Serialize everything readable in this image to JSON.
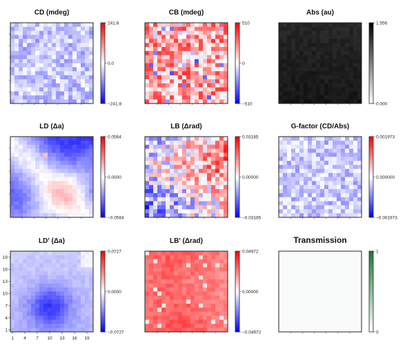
{
  "chart_data": [
    {
      "type": "heatmap",
      "title": "CD (mdeg)",
      "colormap": "bwr",
      "colorbar": {
        "ticks": [
          "241.8",
          "0.0",
          "−241.8"
        ],
        "range": [
          -241.8,
          241.8
        ]
      },
      "pattern": "noise-blue",
      "colors": {
        "low": "#0000ff",
        "mid": "#ffffff",
        "high": "#ff0000"
      }
    },
    {
      "type": "heatmap",
      "title": "CB (mdeg)",
      "colormap": "bwr",
      "colorbar": {
        "ticks": [
          "510",
          "0",
          "−510"
        ],
        "range": [
          -510,
          510
        ]
      },
      "pattern": "noise-red",
      "colors": {
        "low": "#0000ff",
        "mid": "#ffffff",
        "high": "#ff0000"
      }
    },
    {
      "type": "heatmap",
      "title": "Abs (au)",
      "colormap": "gray_r",
      "colorbar": {
        "ticks": [
          "1.556",
          "0.000"
        ],
        "range": [
          0,
          1.556
        ]
      },
      "pattern": "dark",
      "colors": {
        "low": "#ffffff",
        "high": "#000000"
      }
    },
    {
      "type": "heatmap",
      "title": "LD (Δa)",
      "colormap": "bwr",
      "colorbar": {
        "ticks": [
          "0.0564",
          "0.0000",
          "−0.0564"
        ],
        "range": [
          -0.0564,
          0.0564
        ]
      },
      "pattern": "diagonal",
      "colors": {
        "low": "#0000ff",
        "mid": "#ffffff",
        "high": "#ff0000"
      }
    },
    {
      "type": "heatmap",
      "title": "LB (Δrad)",
      "colormap": "bwr",
      "colorbar": {
        "ticks": [
          "0.03185",
          "0.00000",
          "−0.03185"
        ],
        "range": [
          -0.03185,
          0.03185
        ]
      },
      "pattern": "noise-mixed",
      "colors": {
        "low": "#0000ff",
        "mid": "#ffffff",
        "high": "#ff0000"
      }
    },
    {
      "type": "heatmap",
      "title": "G-factor (CD/Abs)",
      "colormap": "bwr",
      "colorbar": {
        "ticks": [
          "0.001973",
          "0.000000",
          "−0.001973"
        ],
        "range": [
          -0.001973,
          0.001973
        ]
      },
      "pattern": "noise-blue",
      "colors": {
        "low": "#0000ff",
        "mid": "#ffffff",
        "high": "#ff0000"
      }
    },
    {
      "type": "heatmap",
      "title": "LD' (Δa)",
      "colormap": "bwr",
      "colorbar": {
        "ticks": [
          "0.0727",
          "0.0000",
          "−0.0727"
        ],
        "range": [
          -0.0727,
          0.0727
        ]
      },
      "pattern": "blob",
      "colors": {
        "low": "#0000ff",
        "mid": "#ffffff",
        "high": "#ff0000"
      },
      "xticks": [
        "1",
        "4",
        "7",
        "10",
        "13",
        "16",
        "19"
      ],
      "yticks": [
        "19",
        "16",
        "13",
        "10",
        "7",
        "4",
        "1"
      ]
    },
    {
      "type": "heatmap",
      "title": "LB' (Δrad)",
      "colormap": "bwr",
      "colorbar": {
        "ticks": [
          "0.04972",
          "0.00000",
          "−0.04972"
        ],
        "range": [
          -0.04972,
          0.04972
        ]
      },
      "pattern": "red",
      "colors": {
        "low": "#0000ff",
        "mid": "#ffffff",
        "high": "#ff0000"
      }
    },
    {
      "type": "heatmap",
      "title": "Transmission",
      "colormap": "greens",
      "colorbar": {
        "ticks": [
          "1",
          "0"
        ],
        "range": [
          0,
          1
        ]
      },
      "pattern": "flat",
      "colors": {
        "low": "#ffffff",
        "high": "#1b7a37"
      }
    }
  ]
}
